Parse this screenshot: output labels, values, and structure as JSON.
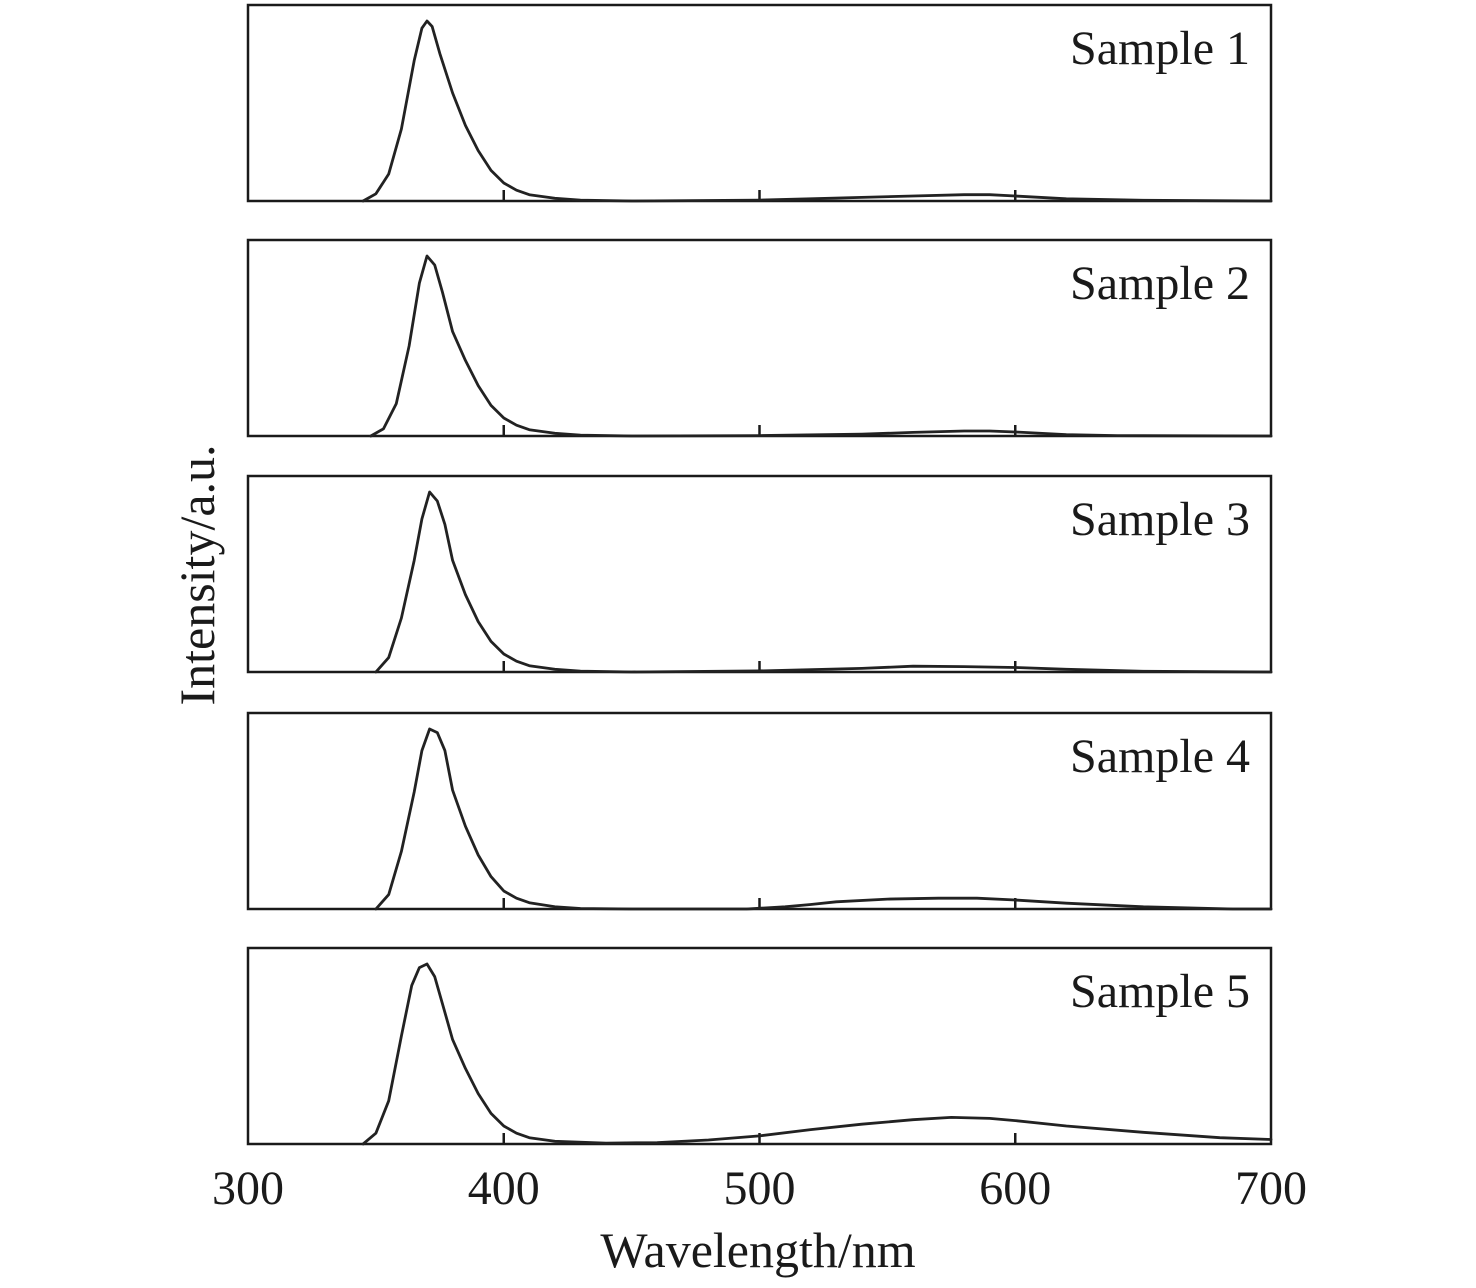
{
  "chart_data": {
    "type": "line",
    "layout": "stacked-panels",
    "xlabel": "Wavelength/nm",
    "ylabel": "Intensity/a.u.",
    "xlim": [
      300,
      700
    ],
    "ylim": [
      0,
      1
    ],
    "x_ticks": [
      300,
      400,
      500,
      600,
      700
    ],
    "x_tick_labels": [
      "300",
      "400",
      "500",
      "600",
      "700"
    ],
    "grid": false,
    "series": [
      {
        "name": "Sample 1",
        "label": "Sample 1",
        "x": [
          345,
          350,
          355,
          360,
          365,
          368,
          370,
          372,
          375,
          380,
          385,
          390,
          395,
          400,
          405,
          410,
          420,
          430,
          450,
          500,
          520,
          540,
          560,
          580,
          590,
          600,
          620,
          650,
          700
        ],
        "y": [
          0.0,
          0.04,
          0.15,
          0.4,
          0.78,
          0.96,
          1.0,
          0.97,
          0.82,
          0.6,
          0.42,
          0.28,
          0.17,
          0.1,
          0.06,
          0.035,
          0.015,
          0.005,
          0.0,
          0.005,
          0.012,
          0.02,
          0.028,
          0.035,
          0.035,
          0.028,
          0.012,
          0.004,
          0.0
        ]
      },
      {
        "name": "Sample 2",
        "label": "Sample 2",
        "x": [
          348,
          353,
          358,
          363,
          367,
          370,
          373,
          376,
          380,
          385,
          390,
          395,
          400,
          405,
          410,
          420,
          430,
          450,
          500,
          540,
          560,
          580,
          590,
          600,
          620,
          640,
          700
        ],
        "y": [
          0.0,
          0.04,
          0.18,
          0.5,
          0.85,
          1.0,
          0.95,
          0.8,
          0.58,
          0.42,
          0.28,
          0.17,
          0.1,
          0.06,
          0.035,
          0.015,
          0.005,
          0.0,
          0.002,
          0.01,
          0.02,
          0.028,
          0.028,
          0.022,
          0.008,
          0.002,
          0.0
        ]
      },
      {
        "name": "Sample 3",
        "label": "Sample 3",
        "x": [
          350,
          355,
          360,
          365,
          368,
          371,
          374,
          377,
          380,
          385,
          390,
          395,
          400,
          405,
          410,
          420,
          430,
          450,
          500,
          540,
          560,
          580,
          600,
          620,
          650,
          700
        ],
        "y": [
          0.0,
          0.08,
          0.3,
          0.62,
          0.85,
          1.0,
          0.95,
          0.82,
          0.62,
          0.43,
          0.28,
          0.17,
          0.1,
          0.06,
          0.035,
          0.015,
          0.005,
          0.0,
          0.006,
          0.02,
          0.032,
          0.03,
          0.025,
          0.015,
          0.004,
          0.0
        ]
      },
      {
        "name": "Sample 4",
        "label": "Sample 4",
        "x": [
          350,
          355,
          360,
          365,
          368,
          371,
          374,
          377,
          380,
          385,
          390,
          395,
          400,
          405,
          410,
          420,
          430,
          450,
          495,
          510,
          520,
          530,
          550,
          570,
          585,
          600,
          620,
          650,
          685,
          700
        ],
        "y": [
          0.0,
          0.08,
          0.32,
          0.65,
          0.88,
          1.0,
          0.98,
          0.88,
          0.66,
          0.46,
          0.3,
          0.18,
          0.1,
          0.06,
          0.035,
          0.012,
          0.003,
          0.0,
          0.0,
          0.012,
          0.025,
          0.04,
          0.055,
          0.06,
          0.06,
          0.05,
          0.032,
          0.012,
          0.0,
          0.0
        ]
      },
      {
        "name": "Sample 5",
        "label": "Sample 5",
        "x": [
          345,
          350,
          355,
          360,
          364,
          367,
          370,
          373,
          376,
          380,
          385,
          390,
          395,
          400,
          405,
          410,
          420,
          440,
          460,
          480,
          500,
          520,
          540,
          560,
          575,
          590,
          600,
          620,
          650,
          680,
          700
        ],
        "y": [
          0.0,
          0.06,
          0.24,
          0.6,
          0.88,
          0.98,
          1.0,
          0.93,
          0.78,
          0.58,
          0.42,
          0.28,
          0.17,
          0.1,
          0.06,
          0.035,
          0.015,
          0.005,
          0.008,
          0.022,
          0.045,
          0.08,
          0.11,
          0.135,
          0.148,
          0.142,
          0.13,
          0.1,
          0.065,
          0.035,
          0.025
        ]
      }
    ]
  }
}
